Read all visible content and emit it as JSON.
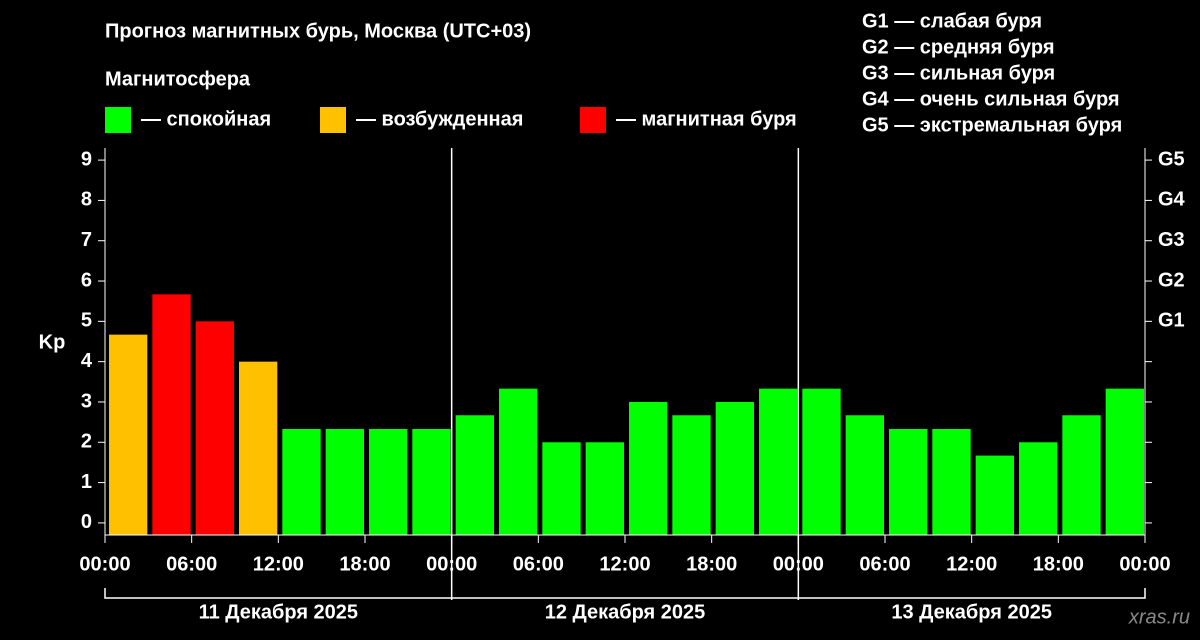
{
  "chart_data": {
    "type": "bar",
    "title": "Прогноз магнитных бурь, Москва (UTC+03)",
    "legend_title": "Магнитосфера",
    "legend": [
      {
        "label": "— спокойная",
        "color": "#00ff00"
      },
      {
        "label": "— возбужденная",
        "color": "#ffc000"
      },
      {
        "label": "— магнитная буря",
        "color": "#ff0000"
      }
    ],
    "storm_scale": [
      "G1 — слабая буря",
      "G2 — средняя буря",
      "G3 — сильная буря",
      "G4 — очень сильная буря",
      "G5 — экстремальная буря"
    ],
    "ylabel": "Kp",
    "watermark": "xras.ru",
    "values": [
      4.67,
      5.67,
      5.0,
      4.0,
      2.33,
      2.33,
      2.33,
      2.33,
      2.67,
      3.33,
      2.0,
      2.0,
      3.0,
      2.67,
      3.0,
      3.33,
      3.33,
      2.67,
      2.33,
      2.33,
      1.67,
      2.0,
      2.67,
      3.33
    ],
    "colors": [
      "#ffc000",
      "#ff0000",
      "#ff0000",
      "#ffc000",
      "#00ff00",
      "#00ff00",
      "#00ff00",
      "#00ff00",
      "#00ff00",
      "#00ff00",
      "#00ff00",
      "#00ff00",
      "#00ff00",
      "#00ff00",
      "#00ff00",
      "#00ff00",
      "#00ff00",
      "#00ff00",
      "#00ff00",
      "#00ff00",
      "#00ff00",
      "#00ff00",
      "#00ff00",
      "#00ff00"
    ],
    "days": [
      "11 Декабря 2025",
      "12 Декабря 2025",
      "13 Декабря 2025"
    ],
    "xlim": [
      0,
      72
    ],
    "xticks": [
      {
        "value": 0,
        "label": "00:00"
      },
      {
        "value": 6,
        "label": "06:00"
      },
      {
        "value": 12,
        "label": "12:00"
      },
      {
        "value": 18,
        "label": "18:00"
      },
      {
        "value": 24,
        "label": "00:00"
      },
      {
        "value": 30,
        "label": "06:00"
      },
      {
        "value": 36,
        "label": "12:00"
      },
      {
        "value": 42,
        "label": "18:00"
      },
      {
        "value": 48,
        "label": "00:00"
      },
      {
        "value": 54,
        "label": "06:00"
      },
      {
        "value": 60,
        "label": "12:00"
      },
      {
        "value": 66,
        "label": "18:00"
      },
      {
        "value": 72,
        "label": "00:00"
      }
    ],
    "ylim": [
      -0.3,
      9.3
    ],
    "yticks": [
      0,
      1,
      2,
      3,
      4,
      5,
      6,
      7,
      8,
      9
    ],
    "y2lim": [
      -0.3,
      9.3
    ],
    "y2ticks": [
      {
        "value": 5,
        "label": "G1"
      },
      {
        "value": 6,
        "label": "G2"
      },
      {
        "value": 7,
        "label": "G3"
      },
      {
        "value": 8,
        "label": "G4"
      },
      {
        "value": 9,
        "label": "G5"
      }
    ]
  }
}
